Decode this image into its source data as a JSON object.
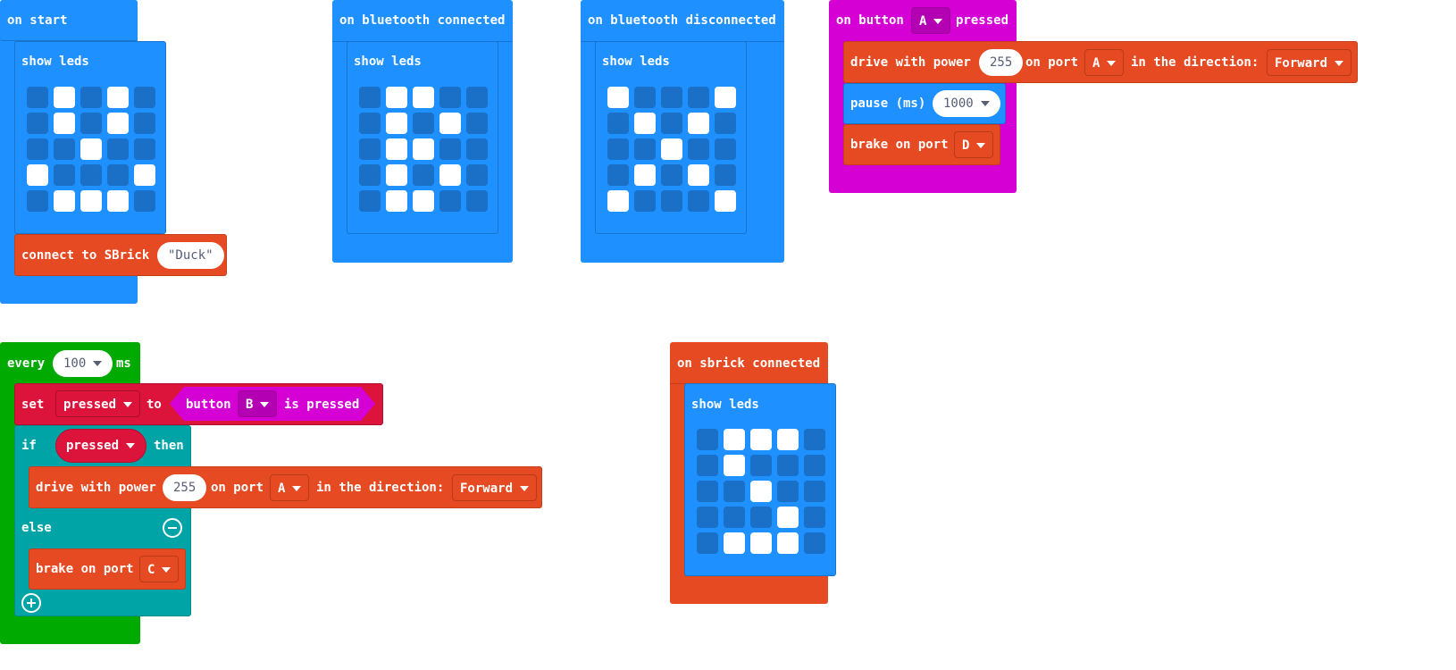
{
  "colors": {
    "event_blue": "#1e90ff",
    "basic_blue": "#1e90ff",
    "sbrick_orange": "#e64a22",
    "input_magenta": "#d400d4",
    "loop_green": "#00aa00",
    "variable_red": "#dc143c",
    "logic_teal": "#00a4a6",
    "led_off": "#1a6fc7",
    "led_on": "#ffffff"
  },
  "blocks": {
    "on_start": {
      "label": "on start",
      "show_leds": "show leds",
      "leds": [
        [
          0,
          1,
          0,
          1,
          0
        ],
        [
          0,
          1,
          0,
          1,
          0
        ],
        [
          0,
          0,
          1,
          0,
          0
        ],
        [
          1,
          0,
          0,
          0,
          1
        ],
        [
          0,
          1,
          1,
          1,
          0
        ]
      ],
      "connect_label": "connect to SBrick",
      "connect_value": "\"Duck\""
    },
    "on_bt_connected": {
      "label": "on bluetooth connected",
      "show_leds": "show leds",
      "leds": [
        [
          0,
          1,
          1,
          0,
          0
        ],
        [
          0,
          1,
          0,
          1,
          0
        ],
        [
          0,
          1,
          1,
          0,
          0
        ],
        [
          0,
          1,
          0,
          1,
          0
        ],
        [
          0,
          1,
          1,
          0,
          0
        ]
      ]
    },
    "on_bt_disconnected": {
      "label": "on bluetooth disconnected",
      "show_leds": "show leds",
      "leds": [
        [
          1,
          0,
          0,
          0,
          1
        ],
        [
          0,
          1,
          0,
          1,
          0
        ],
        [
          0,
          0,
          1,
          0,
          0
        ],
        [
          0,
          1,
          0,
          1,
          0
        ],
        [
          1,
          0,
          0,
          0,
          1
        ]
      ]
    },
    "on_button": {
      "label_on": "on button",
      "button": "A",
      "label_pressed": "pressed",
      "drive": {
        "label": "drive with power",
        "power": "255",
        "on_port": "on port",
        "port": "A",
        "direction_label": "in the direction:",
        "direction": "Forward"
      },
      "pause": {
        "label": "pause (ms)",
        "value": "1000"
      },
      "brake": {
        "label": "brake on port",
        "port": "D"
      }
    },
    "every": {
      "label": "every",
      "interval": "100",
      "unit": "ms",
      "set": {
        "label": "set",
        "variable": "pressed",
        "to": "to",
        "button_label": "button",
        "button": "B",
        "is_pressed": "is pressed"
      },
      "if_label": "if",
      "condition": "pressed",
      "then_label": "then",
      "drive": {
        "label": "drive with power",
        "power": "255",
        "on_port": "on port",
        "port": "A",
        "direction_label": "in the direction:",
        "direction": "Forward"
      },
      "else_label": "else",
      "brake": {
        "label": "brake on port",
        "port": "C"
      }
    },
    "on_sbrick": {
      "label": "on sbrick connected",
      "show_leds": "show leds",
      "leds": [
        [
          0,
          1,
          1,
          1,
          0
        ],
        [
          0,
          1,
          0,
          0,
          0
        ],
        [
          0,
          0,
          1,
          0,
          0
        ],
        [
          0,
          0,
          0,
          1,
          0
        ],
        [
          0,
          1,
          1,
          1,
          0
        ]
      ]
    }
  }
}
